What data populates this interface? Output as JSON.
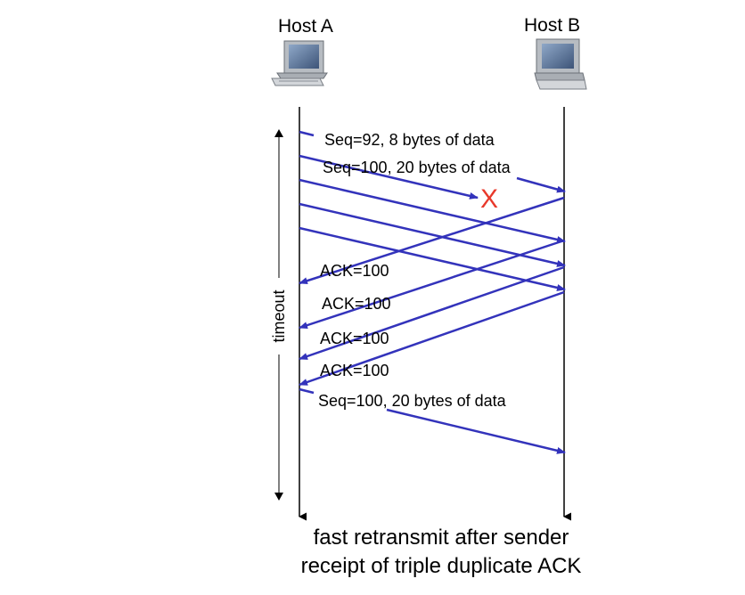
{
  "hosts": {
    "a": {
      "label": "Host A"
    },
    "b": {
      "label": "Host B"
    }
  },
  "messages": {
    "seq92": "Seq=92, 8 bytes of data",
    "seq100": "Seq=100, 20 bytes of data",
    "ack1": "ACK=100",
    "ack2": "ACK=100",
    "ack3": "ACK=100",
    "ack4": "ACK=100",
    "retransmit": "Seq=100, 20 bytes of data"
  },
  "loss_marker": "X",
  "timeout_label": "timeout",
  "caption": {
    "line1": "fast retransmit after sender",
    "line2": "receipt of triple duplicate ACK"
  },
  "colors": {
    "arrow": "#3333bb",
    "loss": "#e8392b",
    "timeline": "#000000"
  }
}
